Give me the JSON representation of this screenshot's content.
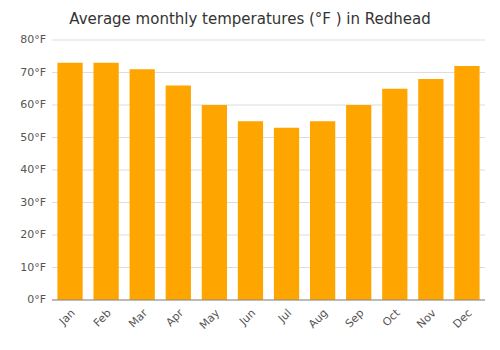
{
  "chart_data": {
    "type": "bar",
    "title": "Average monthly temperatures (°F ) in Redhead",
    "categories": [
      "Jan",
      "Feb",
      "Mar",
      "Apr",
      "May",
      "Jun",
      "Jul",
      "Aug",
      "Sep",
      "Oct",
      "Nov",
      "Dec"
    ],
    "values": [
      73,
      73,
      71,
      66,
      60,
      55,
      53,
      55,
      60,
      65,
      68,
      72
    ],
    "color": "#FFA500",
    "ylim": [
      0,
      80
    ],
    "yticks": [
      {
        "value": 0,
        "label": "0°F"
      },
      {
        "value": 10,
        "label": "10°F"
      },
      {
        "value": 20,
        "label": "20°F"
      },
      {
        "value": 30,
        "label": "30°F"
      },
      {
        "value": 40,
        "label": "40°F"
      },
      {
        "value": 50,
        "label": "50°F"
      },
      {
        "value": 60,
        "label": "60°F"
      },
      {
        "value": 70,
        "label": "70°F"
      },
      {
        "value": 80,
        "label": "80°F"
      }
    ],
    "grid": true
  }
}
